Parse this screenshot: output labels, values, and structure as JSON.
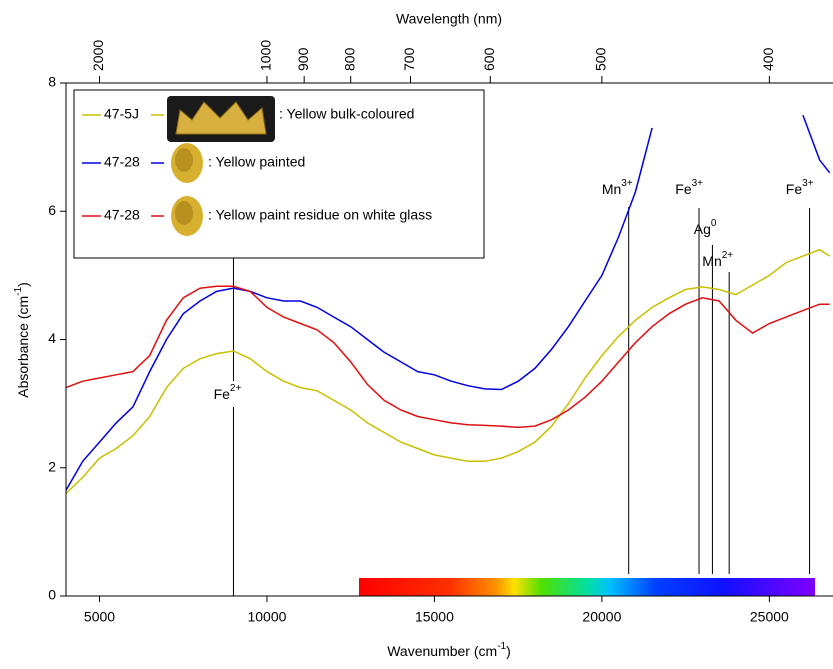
{
  "chart_data": {
    "type": "line",
    "x2label": "Wavelength (nm)",
    "xlabel": {
      "main": "Wavenumber (cm",
      "sup": "-1",
      "end": ")"
    },
    "ylabel": {
      "main": "Absorbance (cm",
      "sup": "-1",
      "end": ")"
    },
    "xlim": [
      4000,
      26900
    ],
    "xticks": [
      5000,
      10000,
      15000,
      20000,
      25000
    ],
    "x2ticks": [
      2000,
      1000,
      900,
      800,
      700,
      600,
      500,
      400
    ],
    "ylim": [
      0,
      8
    ],
    "yticks": [
      0,
      2,
      4,
      6,
      8
    ],
    "x": [
      4000,
      4500,
      5000,
      5500,
      6000,
      6500,
      7000,
      7500,
      8000,
      8500,
      9000,
      9500,
      10000,
      10500,
      11000,
      11500,
      12000,
      12500,
      13000,
      13500,
      14000,
      14500,
      15000,
      15500,
      16000,
      16500,
      17000,
      17500,
      18000,
      18500,
      19000,
      19500,
      20000,
      20500,
      21000,
      21500,
      22000,
      22500,
      23000,
      23500,
      24000,
      24500,
      25000,
      25500,
      26000,
      26500,
      26800
    ],
    "series": [
      {
        "name": "47-5J",
        "description": ": Yellow bulk-coloured",
        "color": "#c8c000",
        "values": [
          1.6,
          1.85,
          2.15,
          2.3,
          2.5,
          2.8,
          3.25,
          3.55,
          3.7,
          3.78,
          3.82,
          3.7,
          3.5,
          3.35,
          3.25,
          3.2,
          3.05,
          2.9,
          2.7,
          2.55,
          2.4,
          2.3,
          2.2,
          2.15,
          2.1,
          2.1,
          2.15,
          2.25,
          2.4,
          2.65,
          3.0,
          3.4,
          3.75,
          4.05,
          4.3,
          4.5,
          4.65,
          4.78,
          4.82,
          4.78,
          4.7,
          4.85,
          5.0,
          5.2,
          5.3,
          5.4,
          5.3
        ]
      },
      {
        "name": "47-28",
        "description": ": Yellow painted",
        "color": "#0000e0",
        "values": [
          1.65,
          2.1,
          2.4,
          2.7,
          2.95,
          3.5,
          4.0,
          4.4,
          4.6,
          4.75,
          4.8,
          4.75,
          4.65,
          4.6,
          4.6,
          4.5,
          4.35,
          4.2,
          4.0,
          3.8,
          3.65,
          3.5,
          3.45,
          3.35,
          3.28,
          3.23,
          3.22,
          3.35,
          3.55,
          3.85,
          4.2,
          4.6,
          5.0,
          5.6,
          6.3,
          7.3,
          null,
          null,
          null,
          null,
          null,
          null,
          null,
          null,
          7.5,
          6.8,
          6.6
        ]
      },
      {
        "name": "47-28",
        "description": ": Yellow paint residue on white glass",
        "color": "#e01010",
        "values": [
          3.25,
          3.35,
          3.4,
          3.45,
          3.5,
          3.75,
          4.3,
          4.65,
          4.8,
          4.83,
          4.83,
          4.75,
          4.5,
          4.35,
          4.25,
          4.15,
          3.95,
          3.65,
          3.3,
          3.05,
          2.9,
          2.8,
          2.75,
          2.7,
          2.67,
          2.66,
          2.65,
          2.63,
          2.65,
          2.75,
          2.9,
          3.1,
          3.35,
          3.65,
          3.95,
          4.2,
          4.4,
          4.55,
          4.65,
          4.6,
          4.3,
          4.1,
          4.25,
          4.35,
          4.45,
          4.55,
          4.55
        ]
      }
    ],
    "annotations": [
      {
        "text": "Fe",
        "sup": "2+",
        "x": 9000
      },
      {
        "text": "Mn",
        "sup": "3+",
        "x": 20800
      },
      {
        "text": "Fe",
        "sup": "3+",
        "x": 22900
      },
      {
        "text": "Ag",
        "sup": "0",
        "x": 23300
      },
      {
        "text": "Mn",
        "sup": "2+",
        "x": 23800
      },
      {
        "text": "Fe",
        "sup": "3+",
        "x": 26200
      }
    ]
  }
}
